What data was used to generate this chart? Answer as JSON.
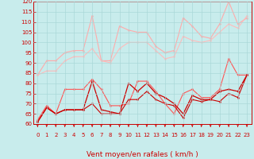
{
  "x": [
    0,
    1,
    2,
    3,
    4,
    5,
    6,
    7,
    8,
    9,
    10,
    11,
    12,
    13,
    14,
    15,
    16,
    17,
    18,
    19,
    20,
    21,
    22,
    23
  ],
  "series": [
    {
      "name": "rafales_high",
      "color": "#ffaaaa",
      "linewidth": 0.8,
      "markersize": 1.8,
      "values": [
        84,
        91,
        91,
        95,
        96,
        96,
        113,
        91,
        91,
        108,
        106,
        105,
        105,
        98,
        95,
        96,
        112,
        108,
        103,
        102,
        109,
        120,
        109,
        112
      ]
    },
    {
      "name": "rafales_mid_high",
      "color": "#ffbbbb",
      "linewidth": 0.8,
      "markersize": 1.8,
      "values": [
        84,
        86,
        86,
        91,
        93,
        93,
        97,
        91,
        90,
        97,
        100,
        100,
        100,
        96,
        92,
        93,
        103,
        101,
        100,
        101,
        105,
        109,
        107,
        113
      ]
    },
    {
      "name": "moyen_high",
      "color": "#ff5555",
      "linewidth": 0.8,
      "markersize": 1.8,
      "values": [
        62,
        69,
        65,
        77,
        77,
        77,
        82,
        77,
        69,
        69,
        70,
        81,
        81,
        76,
        70,
        65,
        75,
        77,
        73,
        73,
        77,
        92,
        84,
        84
      ]
    },
    {
      "name": "moyen_mid",
      "color": "#cc0000",
      "linewidth": 0.9,
      "markersize": 1.8,
      "values": [
        61,
        68,
        65,
        67,
        67,
        67,
        81,
        67,
        66,
        65,
        80,
        76,
        80,
        75,
        73,
        70,
        65,
        74,
        72,
        72,
        76,
        77,
        76,
        84
      ]
    },
    {
      "name": "moyen_low",
      "color": "#cc0000",
      "linewidth": 0.8,
      "markersize": 1.8,
      "values": [
        61,
        68,
        65,
        67,
        67,
        67,
        70,
        65,
        65,
        65,
        72,
        72,
        76,
        72,
        70,
        69,
        63,
        72,
        71,
        72,
        71,
        75,
        73,
        84
      ]
    }
  ],
  "xlabel": "Vent moyen/en rafales ( km/h )",
  "ylim": [
    60,
    120
  ],
  "xlim_min": -0.5,
  "xlim_max": 23.5,
  "yticks": [
    60,
    65,
    70,
    75,
    80,
    85,
    90,
    95,
    100,
    105,
    110,
    115,
    120
  ],
  "xticks": [
    0,
    1,
    2,
    3,
    4,
    5,
    6,
    7,
    8,
    9,
    10,
    11,
    12,
    13,
    14,
    15,
    16,
    17,
    18,
    19,
    20,
    21,
    22,
    23
  ],
  "bg_color": "#c8ecec",
  "grid_color": "#aad8d8",
  "tick_color": "#cc0000",
  "label_color": "#cc0000",
  "xlabel_fontsize": 6.5,
  "tick_fontsize": 5.0,
  "arrow_color": "#cc0000"
}
